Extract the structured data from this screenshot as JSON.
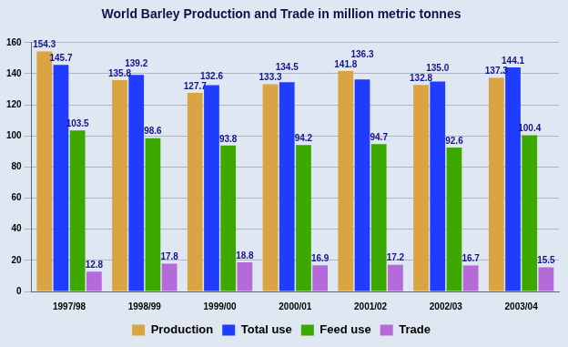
{
  "chart_data": {
    "type": "bar",
    "title": "World Barley Production and Trade in million metric tonnes",
    "categories": [
      "1997/98",
      "1998/99",
      "1999/00",
      "2000/01",
      "2001/02",
      "2002/03",
      "2003/04"
    ],
    "series": [
      {
        "name": "Production",
        "color": "#d9a441",
        "values": [
          154.3,
          135.8,
          127.7,
          133.3,
          141.8,
          132.8,
          137.3
        ]
      },
      {
        "name": "Total use",
        "color": "#1f3cff",
        "values": [
          145.7,
          139.2,
          132.6,
          134.5,
          136.3,
          135.0,
          144.1
        ],
        "value_labels": [
          "145.7",
          "139.2",
          "132.6",
          "134.5",
          "136.3",
          "135.0",
          "144.1"
        ]
      },
      {
        "name": "Feed use",
        "color": "#3da800",
        "values": [
          103.5,
          98.6,
          93.8,
          94.2,
          94.7,
          92.6,
          100.4
        ]
      },
      {
        "name": "Trade",
        "color": "#b46ad8",
        "values": [
          12.8,
          17.8,
          18.8,
          16.9,
          17.2,
          16.7,
          15.5
        ]
      }
    ],
    "ylim": [
      0,
      160
    ],
    "yticks": [
      0,
      20,
      40,
      60,
      80,
      100,
      120,
      140,
      160
    ],
    "grid": true,
    "legend": "bottom",
    "data_labels": true
  }
}
